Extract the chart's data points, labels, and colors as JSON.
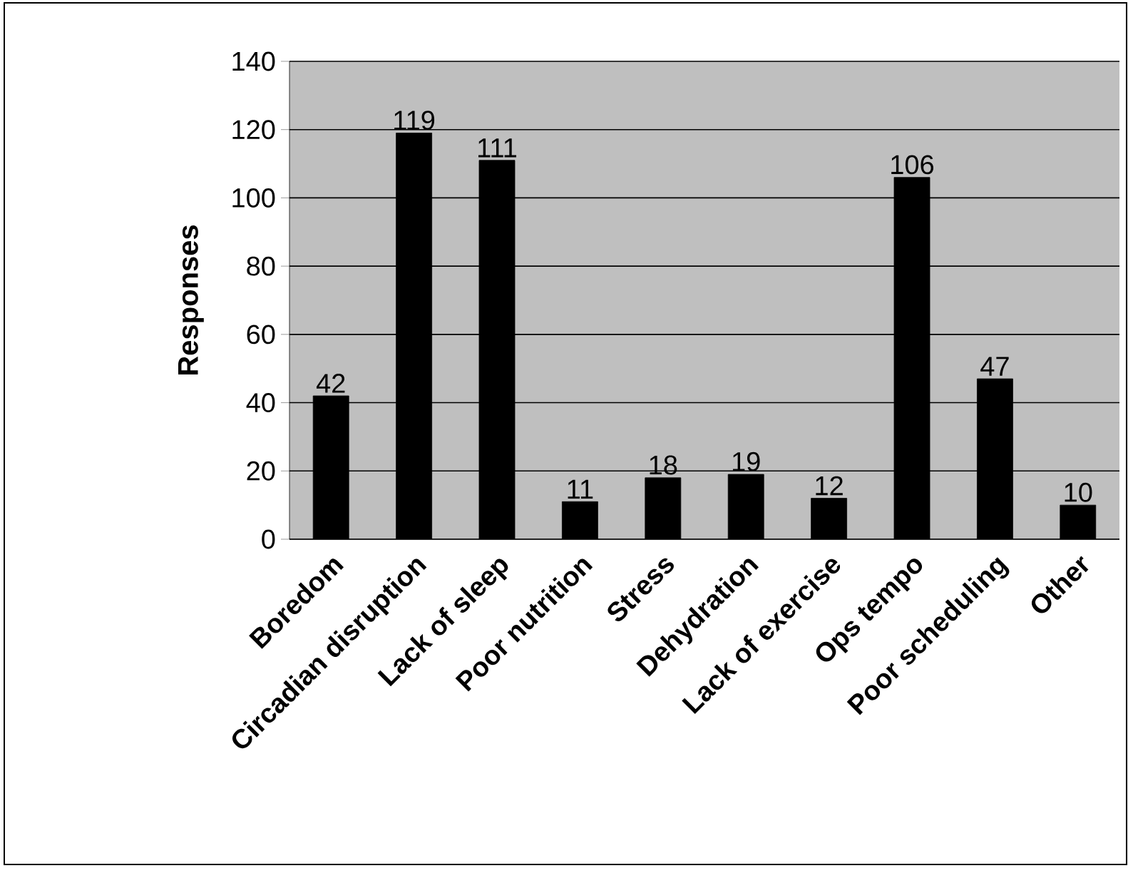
{
  "chart_data": {
    "type": "bar",
    "ylabel": "Responses",
    "categories": [
      "Boredom",
      "Circadian disruption",
      "Lack of sleep",
      "Poor nutrition",
      "Stress",
      "Dehydration",
      "Lack of exercise",
      "Ops tempo",
      "Poor scheduling",
      "Other"
    ],
    "values": [
      42,
      119,
      111,
      11,
      18,
      19,
      12,
      106,
      47,
      10
    ],
    "color": "#000000",
    "ylim": [
      0,
      140
    ],
    "yticks": [
      0,
      20,
      40,
      60,
      80,
      100,
      120,
      140
    ],
    "grid": "y",
    "data_labels": true
  }
}
